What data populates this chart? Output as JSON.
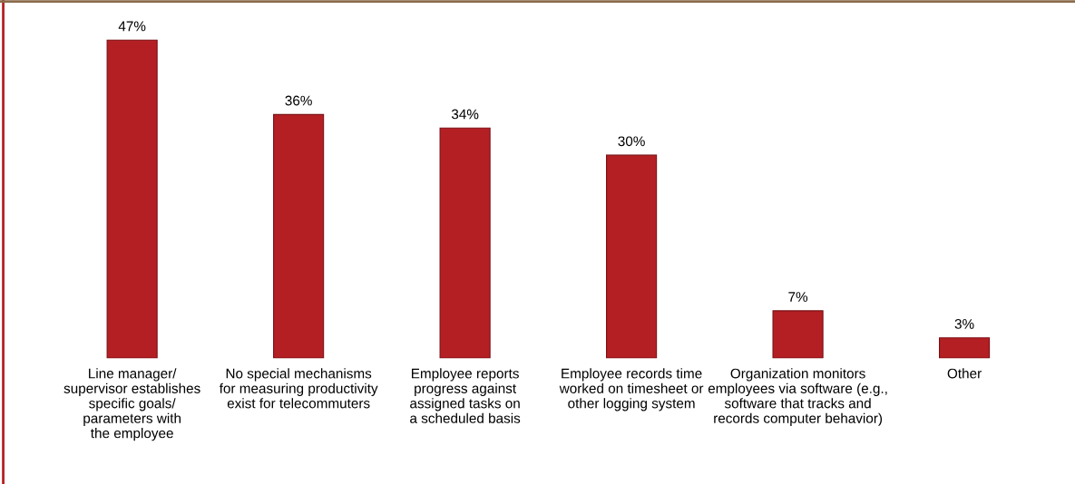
{
  "chart_data": {
    "type": "bar",
    "categories": [
      "Line manager/\nsupervisor establishes\nspecific goals/\nparameters with\nthe employee",
      "No special mechanisms\nfor measuring productivity\nexist for telecommuters",
      "Employee reports\nprogress against\nassigned tasks on\na scheduled basis",
      "Employee records time\nworked on timesheet or\nother logging system",
      "Organization monitors\nemployees via software (e.g.,\nsoftware that tracks and\nrecords computer behavior)",
      "Other"
    ],
    "values": [
      47,
      36,
      34,
      30,
      7,
      3
    ],
    "value_labels": [
      "47%",
      "36%",
      "34%",
      "30%",
      "7%",
      "3%"
    ],
    "color": "#b41f24",
    "grid": false,
    "legend": false
  }
}
